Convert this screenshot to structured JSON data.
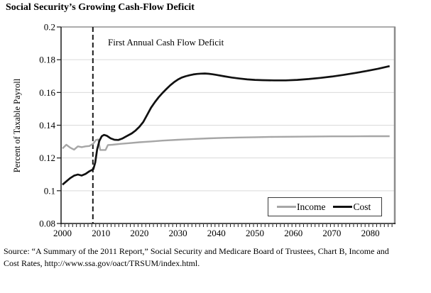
{
  "source": {
    "lines": [
      "Source: “A Summary of the 2011 Report,” Social Security and Medicare Board of Trustees, Chart B, Income and",
      "Cost Rates, http://www.ssa.gov/oact/TRSUM/index.html."
    ]
  },
  "colors": {
    "income": "#a6a6a6",
    "cost": "#111111",
    "grid": "#d9d9d9",
    "axis": "#1a1a1a",
    "frame_top": "#595959",
    "frame_right": "#8c8c8c",
    "dashed_line": "#1a1a1a"
  },
  "chart_data": {
    "type": "line",
    "title": "Social Security’s Growing Cash-Flow Deficit",
    "xlabel": "",
    "ylabel": "Percent of Taxable Payroll",
    "xlim": [
      2000,
      2086
    ],
    "ylim": [
      0.08,
      0.2
    ],
    "grid": "horizontal",
    "x_ticks": [
      2000,
      2010,
      2020,
      2030,
      2040,
      2050,
      2060,
      2070,
      2080
    ],
    "x_tick_labels": [
      "2000",
      "2010",
      "2020",
      "2030",
      "2040",
      "2050",
      "2060",
      "2070",
      "2080"
    ],
    "y_ticks": [
      0.08,
      0.1,
      0.12,
      0.14,
      0.16,
      0.18,
      0.2
    ],
    "y_tick_labels": [
      "0.08",
      "0.1",
      "0.12",
      "0.14",
      "0.16",
      "0.18",
      "0.2"
    ],
    "minor_x_ticks_every_year": true,
    "annotation": {
      "text": "First Annual Cash Flow Deficit",
      "line_year": 2007.9,
      "line_style": "vertical-dashed"
    },
    "legend": {
      "position": "bottom-right",
      "entries": [
        {
          "label": "Income",
          "color": "#a6a6a6"
        },
        {
          "label": "Cost",
          "color": "#111111"
        }
      ]
    },
    "series": [
      {
        "name": "Income",
        "color": "#a6a6a6",
        "points": [
          [
            2000,
            0.1258
          ],
          [
            2001,
            0.1281
          ],
          [
            2002,
            0.1263
          ],
          [
            2003,
            0.1251
          ],
          [
            2004,
            0.1271
          ],
          [
            2005,
            0.1266
          ],
          [
            2006,
            0.1271
          ],
          [
            2007,
            0.1273
          ],
          [
            2008,
            0.1288
          ],
          [
            2008.7,
            0.131
          ],
          [
            2009.3,
            0.1313
          ],
          [
            2009.8,
            0.1249
          ],
          [
            2011.2,
            0.1249
          ],
          [
            2011.8,
            0.1279
          ],
          [
            2013,
            0.1281
          ],
          [
            2015,
            0.1286
          ],
          [
            2017,
            0.129
          ],
          [
            2020,
            0.1296
          ],
          [
            2023,
            0.1301
          ],
          [
            2026,
            0.1306
          ],
          [
            2030,
            0.1311
          ],
          [
            2034,
            0.1316
          ],
          [
            2038,
            0.132
          ],
          [
            2042,
            0.1323
          ],
          [
            2046,
            0.1325
          ],
          [
            2050,
            0.1327
          ],
          [
            2055,
            0.1329
          ],
          [
            2060,
            0.133
          ],
          [
            2065,
            0.1331
          ],
          [
            2070,
            0.1332
          ],
          [
            2075,
            0.1332
          ],
          [
            2080,
            0.1333
          ],
          [
            2085,
            0.1333
          ]
        ]
      },
      {
        "name": "Cost",
        "color": "#111111",
        "points": [
          [
            2000,
            0.1037
          ],
          [
            2001,
            0.1057
          ],
          [
            2002,
            0.1077
          ],
          [
            2003,
            0.1092
          ],
          [
            2004,
            0.1099
          ],
          [
            2005,
            0.1093
          ],
          [
            2006,
            0.1103
          ],
          [
            2007,
            0.1119
          ],
          [
            2008,
            0.1131
          ],
          [
            2008.5,
            0.1172
          ],
          [
            2009,
            0.1252
          ],
          [
            2009.6,
            0.1305
          ],
          [
            2010.2,
            0.1333
          ],
          [
            2010.8,
            0.1341
          ],
          [
            2011.5,
            0.1336
          ],
          [
            2012.5,
            0.132
          ],
          [
            2013.5,
            0.1311
          ],
          [
            2014.5,
            0.131
          ],
          [
            2015.5,
            0.1318
          ],
          [
            2016.5,
            0.1331
          ],
          [
            2018,
            0.135
          ],
          [
            2019,
            0.1368
          ],
          [
            2020,
            0.1391
          ],
          [
            2021,
            0.142
          ],
          [
            2022,
            0.1463
          ],
          [
            2023,
            0.1507
          ],
          [
            2024,
            0.1541
          ],
          [
            2025,
            0.1571
          ],
          [
            2026,
            0.1597
          ],
          [
            2027,
            0.1621
          ],
          [
            2028,
            0.1644
          ],
          [
            2029,
            0.1663
          ],
          [
            2030,
            0.1679
          ],
          [
            2031,
            0.1691
          ],
          [
            2032,
            0.1699
          ],
          [
            2033,
            0.1705
          ],
          [
            2034,
            0.171
          ],
          [
            2035,
            0.1713
          ],
          [
            2036,
            0.1715
          ],
          [
            2037,
            0.1716
          ],
          [
            2038,
            0.1714
          ],
          [
            2039,
            0.1711
          ],
          [
            2040,
            0.1707
          ],
          [
            2042,
            0.1699
          ],
          [
            2044,
            0.1691
          ],
          [
            2046,
            0.1685
          ],
          [
            2048,
            0.168
          ],
          [
            2050,
            0.1677
          ],
          [
            2052,
            0.1675
          ],
          [
            2055,
            0.1674
          ],
          [
            2058,
            0.1674
          ],
          [
            2061,
            0.1677
          ],
          [
            2064,
            0.1682
          ],
          [
            2067,
            0.1689
          ],
          [
            2070,
            0.1697
          ],
          [
            2073,
            0.1707
          ],
          [
            2076,
            0.1719
          ],
          [
            2079,
            0.1731
          ],
          [
            2082,
            0.1745
          ],
          [
            2085,
            0.1761
          ]
        ]
      }
    ]
  }
}
